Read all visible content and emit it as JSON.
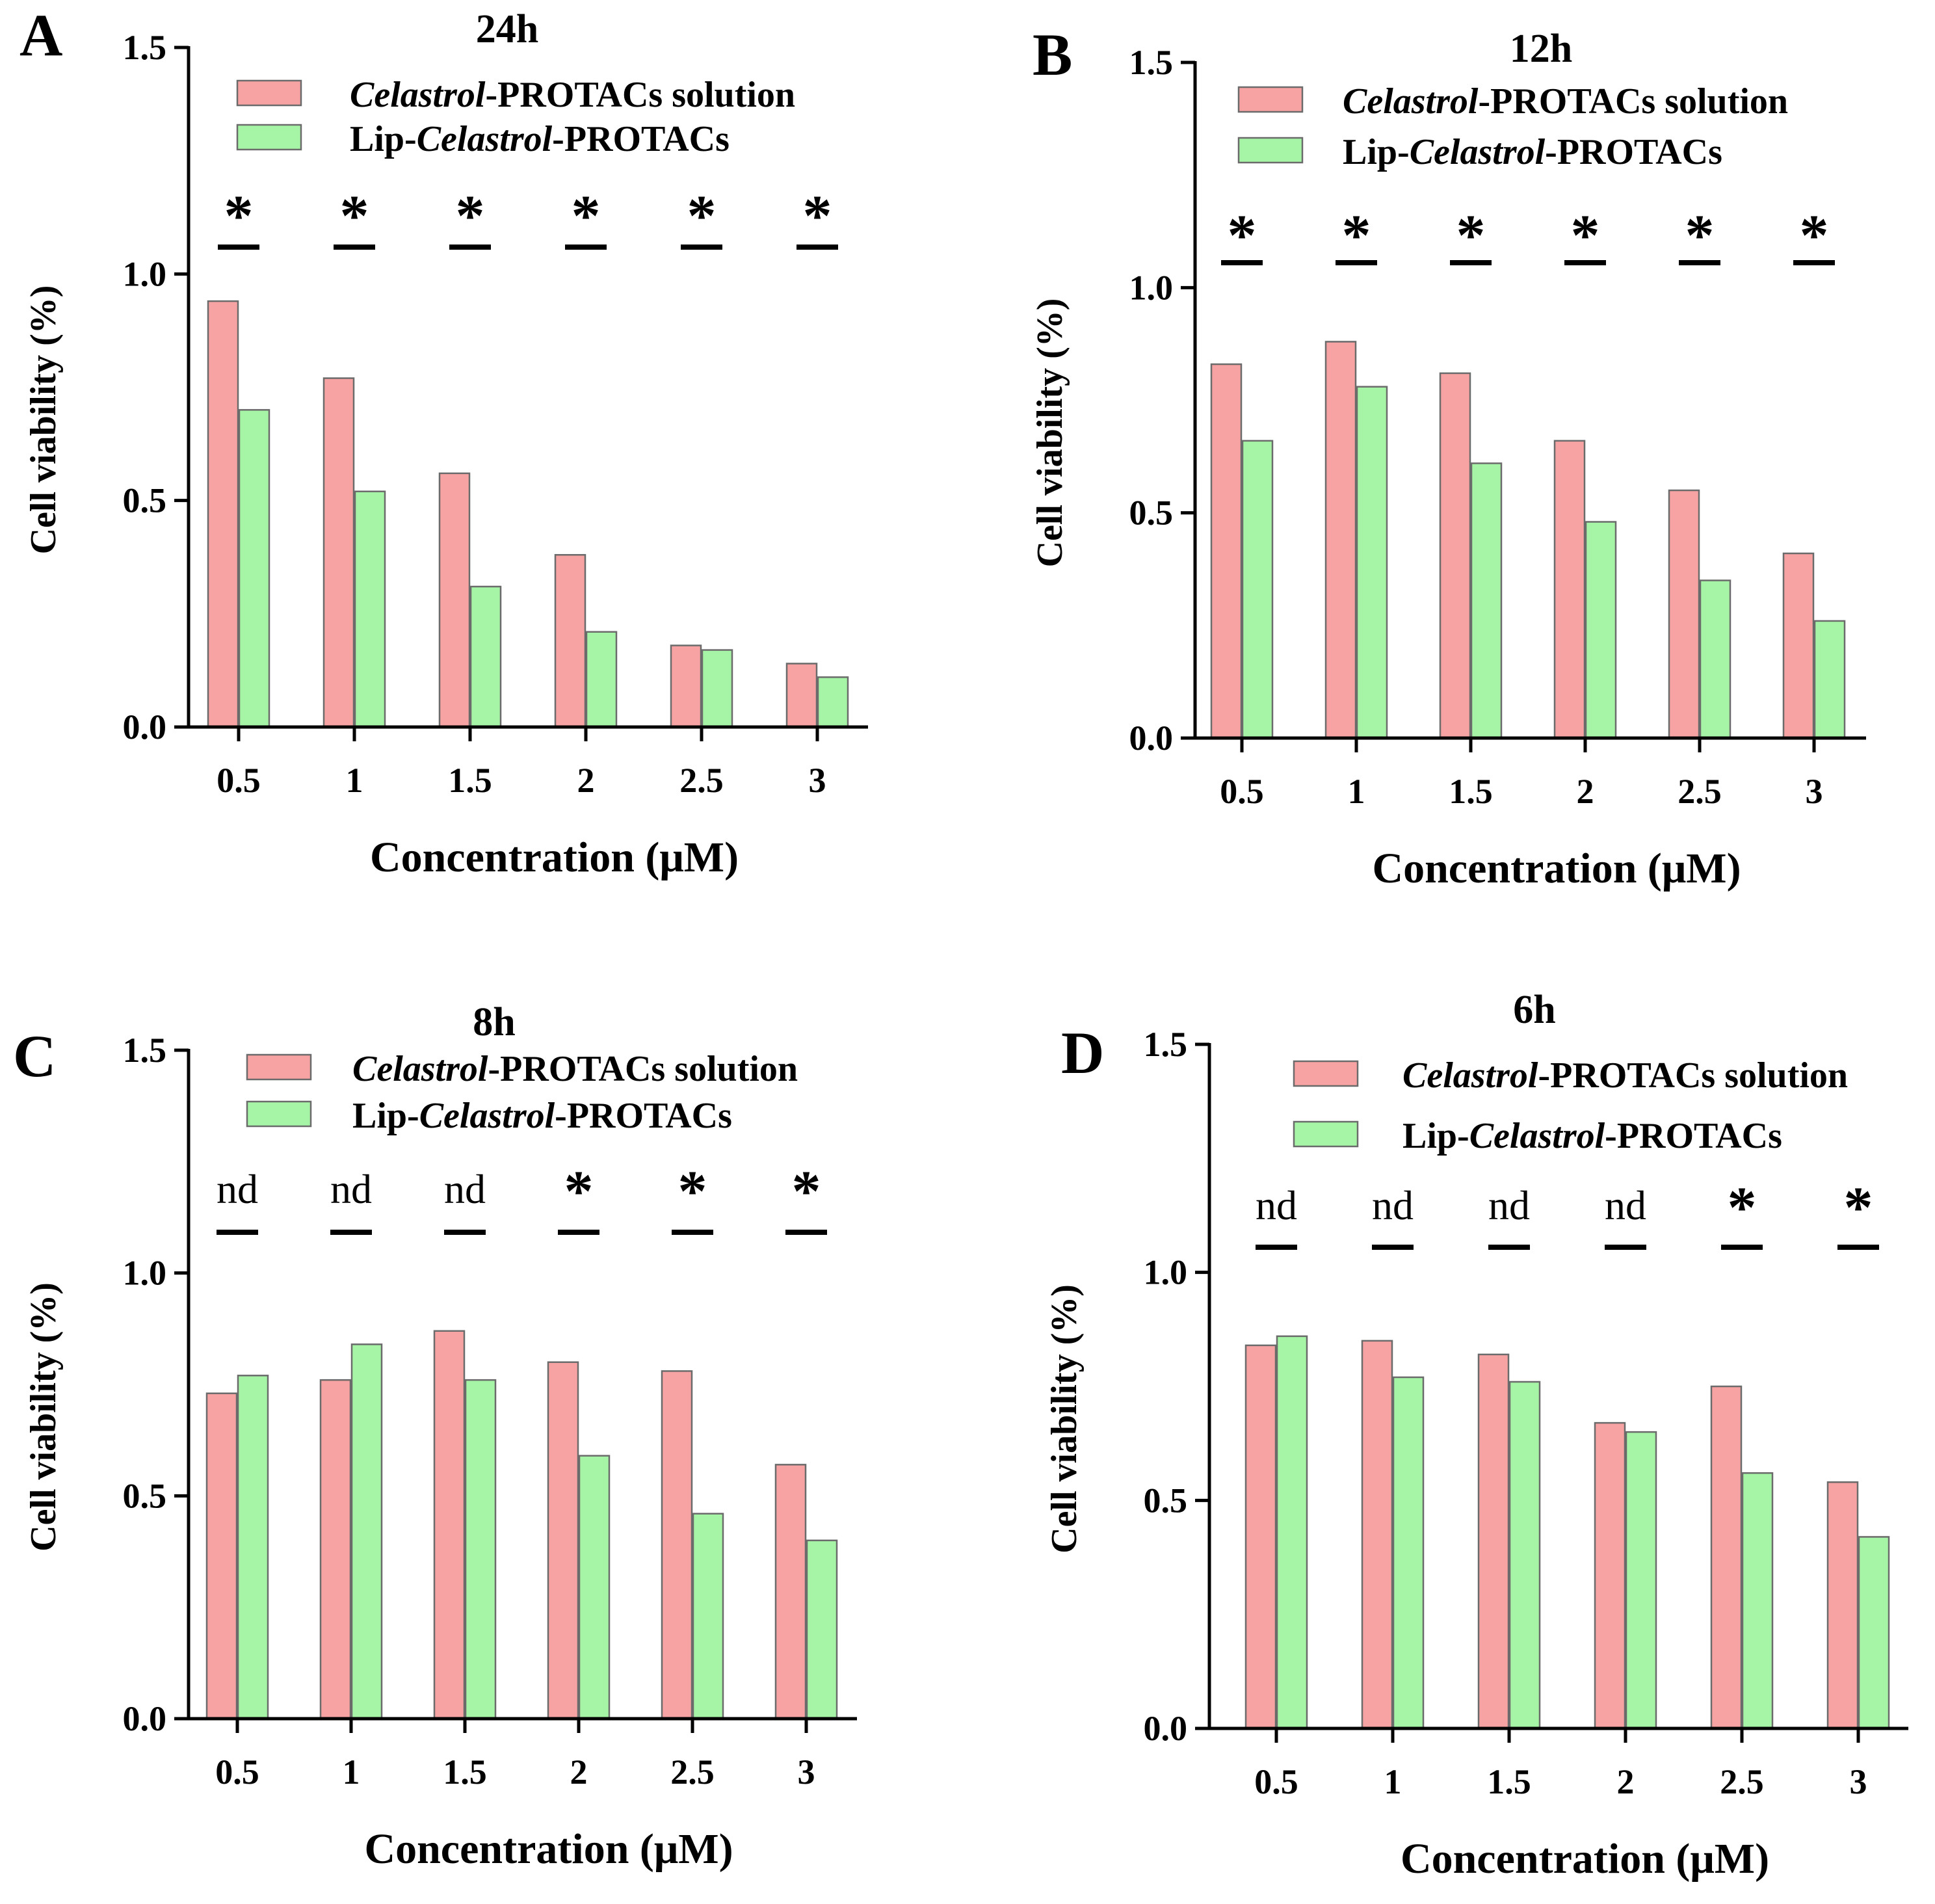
{
  "chart_data": [
    {
      "panel": "A",
      "type": "bar",
      "title": "24h",
      "xlabel": "Concentration (μM)",
      "ylabel": "Cell viability (%)",
      "ylim": [
        0,
        1.5
      ],
      "yticks": [
        "0.0",
        "0.5",
        "1.0",
        "1.5"
      ],
      "categories": [
        "0.5",
        "1",
        "1.5",
        "2",
        "2.5",
        "3"
      ],
      "series": [
        {
          "name": "Celastrol-PROTACs solution",
          "values": [
            0.94,
            0.77,
            0.56,
            0.38,
            0.18,
            0.14
          ]
        },
        {
          "name": "Lip-Celastrol-PROTACs",
          "values": [
            0.7,
            0.52,
            0.31,
            0.21,
            0.17,
            0.11
          ]
        }
      ],
      "significance": [
        "*",
        "*",
        "*",
        "*",
        "*",
        "*"
      ],
      "legend": {
        "italic_word": "Celastrol",
        "entry1_suffix": "-PROTACs solution",
        "entry2_prefix": "Lip-",
        "entry2_suffix": "-PROTACs"
      }
    },
    {
      "panel": "B",
      "type": "bar",
      "title": "12h",
      "xlabel": "Concentration (μM)",
      "ylabel": "Cell viability (%)",
      "ylim": [
        0,
        1.5
      ],
      "yticks": [
        "0.0",
        "0.5",
        "1.0",
        "1.5"
      ],
      "categories": [
        "0.5",
        "1",
        "1.5",
        "2",
        "2.5",
        "3"
      ],
      "series": [
        {
          "name": "Celastrol-PROTACs solution",
          "values": [
            0.83,
            0.88,
            0.81,
            0.66,
            0.55,
            0.41
          ]
        },
        {
          "name": "Lip-Celastrol-PROTACs",
          "values": [
            0.66,
            0.78,
            0.61,
            0.48,
            0.35,
            0.26
          ]
        }
      ],
      "significance": [
        "*",
        "*",
        "*",
        "*",
        "*",
        "*"
      ],
      "legend": {
        "italic_word": "Celastrol",
        "entry1_suffix": "-PROTACs solution",
        "entry2_prefix": "Lip-",
        "entry2_suffix": "-PROTACs"
      }
    },
    {
      "panel": "C",
      "type": "bar",
      "title": "8h",
      "xlabel": "Concentration (μM)",
      "ylabel": "Cell viability (%)",
      "ylim": [
        0,
        1.5
      ],
      "yticks": [
        "0.0",
        "0.5",
        "1.0",
        "1.5"
      ],
      "categories": [
        "0.5",
        "1",
        "1.5",
        "2",
        "2.5",
        "3"
      ],
      "series": [
        {
          "name": "Celastrol-PROTACs solution",
          "values": [
            0.73,
            0.76,
            0.87,
            0.8,
            0.78,
            0.57
          ]
        },
        {
          "name": "Lip-Celastrol-PROTACs",
          "values": [
            0.77,
            0.84,
            0.76,
            0.59,
            0.46,
            0.4
          ]
        }
      ],
      "significance": [
        "nd",
        "nd",
        "nd",
        "*",
        "*",
        "*"
      ],
      "legend": {
        "italic_word": "Celastrol",
        "entry1_suffix": "-PROTACs solution",
        "entry2_prefix": "Lip-",
        "entry2_suffix": "-PROTACs"
      }
    },
    {
      "panel": "D",
      "type": "bar",
      "title": "6h",
      "xlabel": "Concentration (μM)",
      "ylabel": "Cell viability (%)",
      "ylim": [
        0,
        1.5
      ],
      "yticks": [
        "0.0",
        "0.5",
        "1.0",
        "1.5"
      ],
      "categories": [
        "0.5",
        "1",
        "1.5",
        "2",
        "2.5",
        "3"
      ],
      "series": [
        {
          "name": "Celastrol-PROTACs solution",
          "values": [
            0.84,
            0.85,
            0.82,
            0.67,
            0.75,
            0.54
          ]
        },
        {
          "name": "Lip-Celastrol-PROTACs",
          "values": [
            0.86,
            0.77,
            0.76,
            0.65,
            0.56,
            0.42
          ]
        }
      ],
      "significance": [
        "nd",
        "nd",
        "nd",
        "nd",
        "*",
        "*"
      ],
      "legend": {
        "italic_word": "Celastrol",
        "entry1_suffix": "-PROTACs solution",
        "entry2_prefix": "Lip-",
        "entry2_suffix": "-PROTACs"
      }
    }
  ],
  "colors": {
    "series1_fill": "#f8a3a3",
    "series2_fill": "#a6f5a6",
    "bar_stroke": "#6b6b6b",
    "axis": "#000000"
  }
}
